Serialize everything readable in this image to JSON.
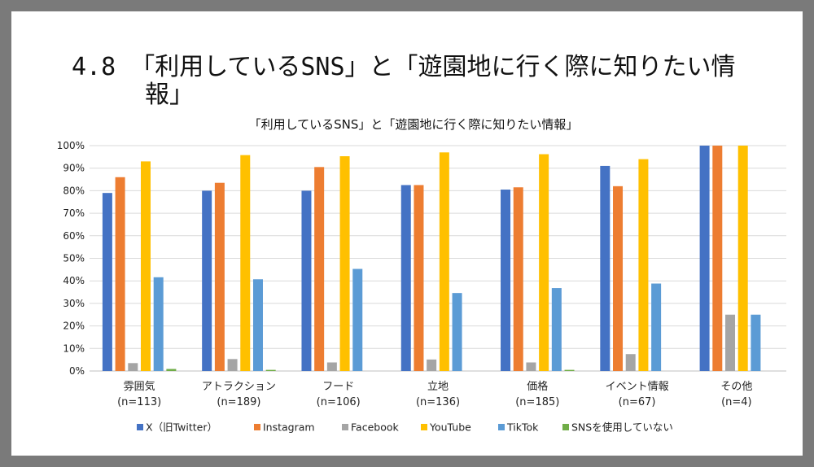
{
  "slide": {
    "title_line1": "4.8 「利用しているSNS」と「遊園地に行く際に知りたい情",
    "title_line2": "報」"
  },
  "chart_data": {
    "type": "bar",
    "title": "「利用しているSNS」と「遊園地に行く際に知りたい情報」",
    "categories": [
      "雰囲気",
      "アトラクション",
      "フード",
      "立地",
      "価格",
      "イベント情報",
      "その他"
    ],
    "category_counts": [
      "(n=113)",
      "(n=189)",
      "(n=106)",
      "(n=136)",
      "(n=185)",
      "(n=67)",
      "(n=4)"
    ],
    "ylim": [
      0,
      100
    ],
    "yticks": [
      "0%",
      "10%",
      "20%",
      "30%",
      "40%",
      "50%",
      "60%",
      "70%",
      "80%",
      "90%",
      "100%"
    ],
    "grid": true,
    "legend_position": "bottom",
    "series": [
      {
        "name": "X（旧Twitter）",
        "color": "#4472C4",
        "values": [
          79,
          80,
          80,
          82.5,
          80.5,
          91,
          100
        ]
      },
      {
        "name": "Instagram",
        "color": "#ED7D31",
        "values": [
          86,
          83.5,
          90.5,
          82.5,
          81.5,
          82,
          100
        ]
      },
      {
        "name": "Facebook",
        "color": "#A5A5A5",
        "values": [
          3.5,
          5.3,
          3.8,
          5.1,
          3.8,
          7.5,
          25
        ]
      },
      {
        "name": "YouTube",
        "color": "#FFC000",
        "values": [
          93,
          95.8,
          95.3,
          97,
          96.2,
          94,
          100
        ]
      },
      {
        "name": "TikTok",
        "color": "#5B9BD5",
        "values": [
          41.6,
          40.7,
          45.3,
          34.6,
          36.8,
          38.8,
          25
        ]
      },
      {
        "name": "SNSを使用していない",
        "color": "#70AD47",
        "values": [
          0.9,
          0.5,
          0,
          0,
          0.5,
          0,
          0
        ]
      }
    ]
  }
}
